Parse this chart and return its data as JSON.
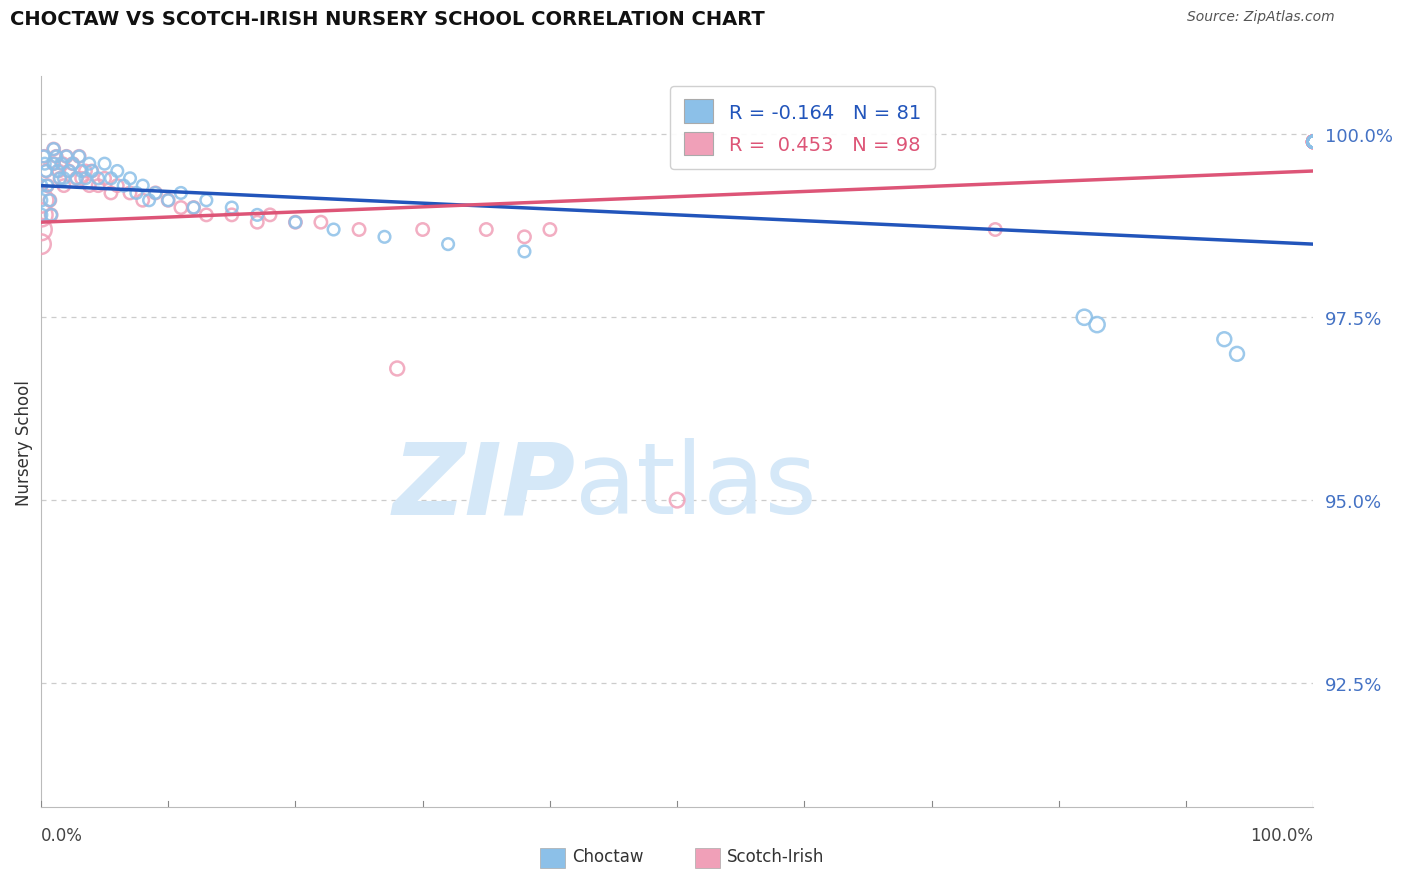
{
  "title": "CHOCTAW VS SCOTCH-IRISH NURSERY SCHOOL CORRELATION CHART",
  "source": "Source: ZipAtlas.com",
  "ylabel": "Nursery School",
  "ytick_labels": [
    "92.5%",
    "95.0%",
    "97.5%",
    "100.0%"
  ],
  "ytick_values": [
    0.925,
    0.95,
    0.975,
    1.0
  ],
  "xlim": [
    0.0,
    1.0
  ],
  "ylim": [
    0.908,
    1.008
  ],
  "legend_choctaw": "Choctaw",
  "legend_scotch": "Scotch-Irish",
  "R_choctaw": -0.164,
  "N_choctaw": 81,
  "R_scotch": 0.453,
  "N_scotch": 98,
  "choctaw_color": "#8CC0E8",
  "scotch_color": "#F0A0B8",
  "choctaw_line_color": "#2255BB",
  "scotch_line_color": "#DD5577",
  "watermark_color": "#D5E8F8",
  "choctaw_trend_start": 0.993,
  "choctaw_trend_end": 0.985,
  "scotch_trend_start": 0.988,
  "scotch_trend_end": 0.995,
  "choctaw_points_x": [
    0.0,
    0.0,
    0.0,
    0.002,
    0.003,
    0.004,
    0.005,
    0.007,
    0.008,
    0.01,
    0.01,
    0.012,
    0.013,
    0.015,
    0.016,
    0.018,
    0.02,
    0.022,
    0.025,
    0.028,
    0.03,
    0.032,
    0.035,
    0.038,
    0.04,
    0.045,
    0.05,
    0.055,
    0.06,
    0.065,
    0.07,
    0.075,
    0.08,
    0.085,
    0.09,
    0.1,
    0.11,
    0.12,
    0.13,
    0.15,
    0.17,
    0.2,
    0.23,
    0.27,
    0.32,
    0.38,
    0.82,
    0.83,
    0.93,
    0.94,
    1.0,
    1.0,
    1.0,
    1.0,
    1.0,
    1.0,
    1.0,
    1.0,
    1.0,
    1.0,
    1.0,
    1.0,
    1.0,
    1.0,
    1.0,
    1.0,
    1.0,
    1.0,
    1.0,
    1.0,
    1.0,
    1.0,
    1.0,
    1.0,
    1.0,
    1.0,
    1.0,
    1.0,
    1.0,
    1.0,
    1.0
  ],
  "choctaw_points_y": [
    0.993,
    0.991,
    0.989,
    0.997,
    0.996,
    0.995,
    0.993,
    0.991,
    0.989,
    0.998,
    0.996,
    0.997,
    0.995,
    0.994,
    0.996,
    0.994,
    0.997,
    0.995,
    0.996,
    0.994,
    0.997,
    0.995,
    0.994,
    0.996,
    0.995,
    0.994,
    0.996,
    0.994,
    0.995,
    0.993,
    0.994,
    0.992,
    0.993,
    0.991,
    0.992,
    0.991,
    0.992,
    0.99,
    0.991,
    0.99,
    0.989,
    0.988,
    0.987,
    0.986,
    0.985,
    0.984,
    0.975,
    0.974,
    0.972,
    0.97,
    0.999,
    0.999,
    0.999,
    0.999,
    0.999,
    0.999,
    0.999,
    0.999,
    0.999,
    0.999,
    0.999,
    0.999,
    0.999,
    0.999,
    0.999,
    0.999,
    0.999,
    0.999,
    0.999,
    0.999,
    0.999,
    0.999,
    0.999,
    0.999,
    0.999,
    0.999,
    0.999,
    0.999,
    0.999,
    0.999,
    0.999
  ],
  "choctaw_sizes": [
    80,
    80,
    80,
    70,
    70,
    70,
    70,
    70,
    70,
    70,
    70,
    70,
    70,
    70,
    70,
    70,
    70,
    70,
    70,
    70,
    70,
    70,
    70,
    70,
    70,
    70,
    70,
    70,
    70,
    70,
    70,
    70,
    70,
    70,
    70,
    70,
    70,
    70,
    70,
    70,
    70,
    70,
    70,
    70,
    70,
    70,
    120,
    120,
    100,
    100,
    70,
    70,
    70,
    70,
    70,
    70,
    70,
    70,
    70,
    70,
    70,
    70,
    70,
    70,
    70,
    70,
    70,
    70,
    70,
    70,
    70,
    70,
    70,
    70,
    70,
    70,
    70,
    70,
    70,
    70,
    70
  ],
  "scotch_points_x": [
    0.0,
    0.0,
    0.0,
    0.0,
    0.003,
    0.004,
    0.005,
    0.007,
    0.008,
    0.01,
    0.01,
    0.012,
    0.014,
    0.015,
    0.017,
    0.018,
    0.02,
    0.022,
    0.025,
    0.028,
    0.03,
    0.032,
    0.035,
    0.038,
    0.04,
    0.045,
    0.05,
    0.055,
    0.06,
    0.07,
    0.08,
    0.09,
    0.1,
    0.11,
    0.12,
    0.13,
    0.15,
    0.17,
    0.18,
    0.2,
    0.22,
    0.25,
    0.28,
    0.3,
    0.35,
    0.38,
    0.4,
    0.5,
    0.75,
    1.0,
    1.0,
    1.0,
    1.0,
    1.0,
    1.0,
    1.0,
    1.0,
    1.0,
    1.0,
    1.0,
    1.0,
    1.0,
    1.0,
    1.0,
    1.0,
    1.0,
    1.0,
    1.0,
    1.0,
    1.0,
    1.0,
    1.0,
    1.0,
    1.0,
    1.0,
    1.0,
    1.0,
    1.0,
    1.0,
    1.0,
    1.0,
    1.0,
    1.0,
    1.0,
    1.0,
    1.0,
    1.0,
    1.0,
    1.0,
    1.0,
    1.0,
    1.0,
    1.0,
    1.0,
    1.0,
    1.0,
    1.0,
    1.0
  ],
  "scotch_points_y": [
    0.991,
    0.989,
    0.987,
    0.985,
    0.997,
    0.995,
    0.993,
    0.991,
    0.989,
    0.998,
    0.996,
    0.997,
    0.995,
    0.994,
    0.996,
    0.993,
    0.997,
    0.995,
    0.996,
    0.994,
    0.997,
    0.994,
    0.995,
    0.993,
    0.995,
    0.993,
    0.994,
    0.992,
    0.993,
    0.992,
    0.991,
    0.992,
    0.991,
    0.99,
    0.99,
    0.989,
    0.989,
    0.988,
    0.989,
    0.988,
    0.988,
    0.987,
    0.968,
    0.987,
    0.987,
    0.986,
    0.987,
    0.95,
    0.987,
    0.999,
    0.999,
    0.999,
    0.999,
    0.999,
    0.999,
    0.999,
    0.999,
    0.999,
    0.999,
    0.999,
    0.999,
    0.999,
    0.999,
    0.999,
    0.999,
    0.999,
    0.999,
    0.999,
    0.999,
    0.999,
    0.999,
    0.999,
    0.999,
    0.999,
    0.999,
    0.999,
    0.999,
    0.999,
    0.999,
    0.999,
    0.999,
    0.999,
    0.999,
    0.999,
    0.999,
    0.999,
    0.999,
    0.999,
    0.999,
    0.999,
    0.999,
    0.999,
    0.999,
    0.999,
    0.999,
    0.999,
    0.999,
    0.999
  ],
  "scotch_sizes": [
    320,
    280,
    240,
    200,
    80,
    80,
    80,
    80,
    80,
    80,
    80,
    80,
    80,
    80,
    80,
    80,
    80,
    80,
    80,
    80,
    80,
    80,
    80,
    80,
    80,
    80,
    80,
    80,
    80,
    80,
    80,
    80,
    80,
    80,
    80,
    80,
    80,
    80,
    80,
    80,
    80,
    80,
    100,
    80,
    80,
    80,
    80,
    110,
    80,
    80,
    80,
    80,
    80,
    80,
    80,
    80,
    80,
    80,
    80,
    80,
    80,
    80,
    80,
    80,
    80,
    80,
    80,
    80,
    80,
    80,
    80,
    80,
    80,
    80,
    80,
    80,
    80,
    80,
    80,
    80,
    80,
    80,
    80,
    80,
    80,
    80,
    80,
    80,
    80,
    80,
    80,
    80,
    80,
    80,
    80,
    80,
    80,
    80
  ]
}
